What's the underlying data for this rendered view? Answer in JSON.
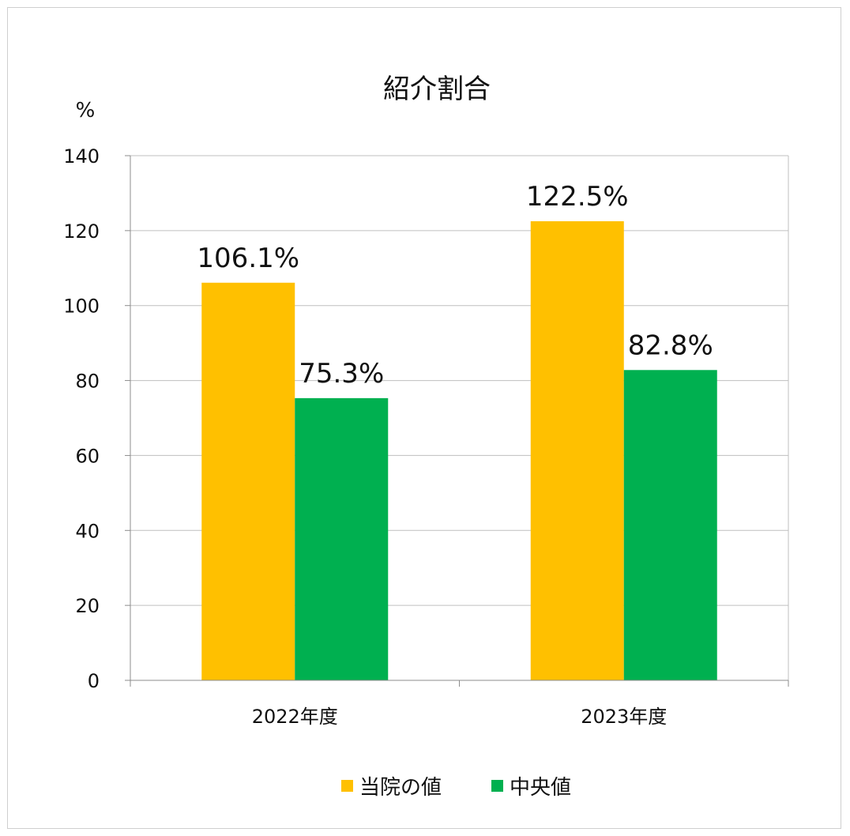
{
  "chart_data": {
    "type": "bar",
    "title": "紹介割合",
    "ylabel": "%",
    "xlabel": "",
    "categories": [
      "2022年度",
      "2023年度"
    ],
    "series": [
      {
        "name": "当院の値",
        "values": [
          106.1,
          122.5
        ],
        "labels": [
          "106.1%",
          "122.5%"
        ],
        "color": "#FFC000"
      },
      {
        "name": "中央値",
        "values": [
          75.3,
          82.8
        ],
        "labels": [
          "75.3%",
          "82.8%"
        ],
        "color": "#00B050"
      }
    ],
    "ylim": [
      0,
      140
    ],
    "yticks": [
      0,
      20,
      40,
      60,
      80,
      100,
      120,
      140
    ],
    "grid": true,
    "legend": "bottom"
  }
}
